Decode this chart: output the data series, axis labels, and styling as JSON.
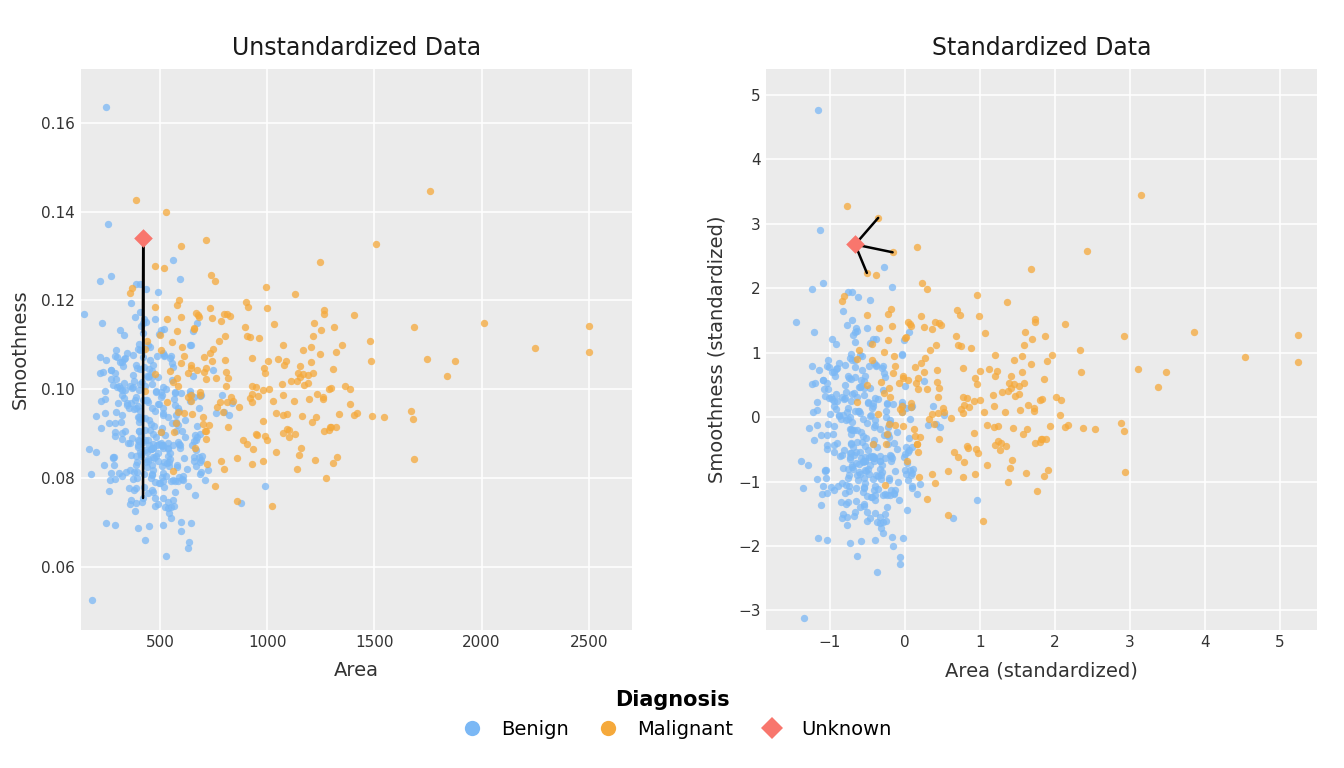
{
  "title_left": "Unstandardized Data",
  "title_right": "Standardized Data",
  "xlabel_left": "Area",
  "ylabel_left": "Smoothness",
  "xlabel_right": "Area (standardized)",
  "ylabel_right": "Smoothness (standardized)",
  "bg_color": "#EBEBEB",
  "grid_color": "white",
  "benign_color": "#7BB8F5",
  "malignant_color": "#F5A93B",
  "unknown_color": "#F8766D",
  "point_alpha": 0.75,
  "point_size": 28,
  "xlim_left": [
    130,
    2700
  ],
  "ylim_left": [
    0.046,
    0.172
  ],
  "xlim_right": [
    -1.85,
    5.5
  ],
  "ylim_right": [
    -3.3,
    5.4
  ],
  "legend_fontsize": 14,
  "title_fontsize": 17,
  "axis_label_fontsize": 14,
  "tick_fontsize": 11,
  "legend_box_color": "#D8D8D8"
}
